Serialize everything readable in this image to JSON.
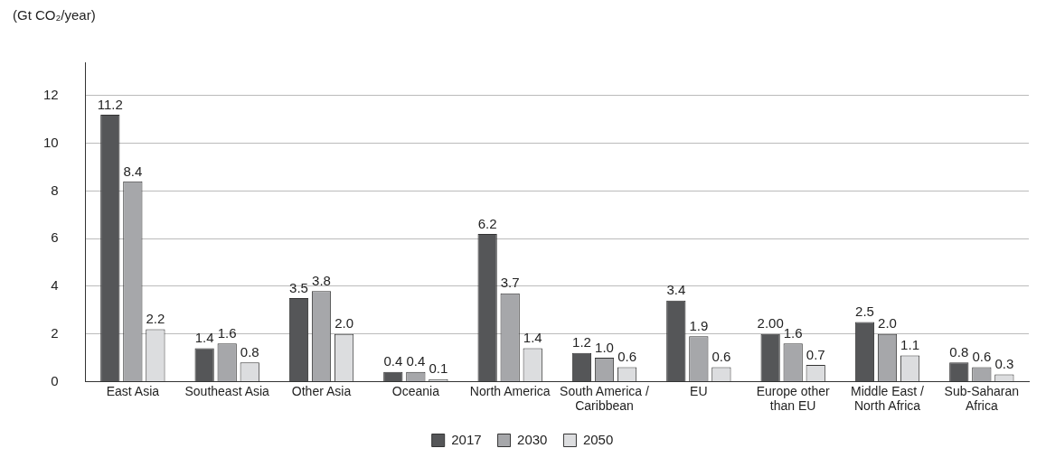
{
  "chart_data": {
    "type": "bar",
    "ylabel": "(Gt CO₂/year)",
    "categories": [
      "East Asia",
      "Southeast Asia",
      "Other Asia",
      "Oceania",
      "North America",
      "South America / Caribbean",
      "EU",
      "Europe other than EU",
      "Middle East / North Africa",
      "Sub-Saharan Africa"
    ],
    "series": [
      {
        "name": "2017",
        "color": "#555658",
        "values": [
          11.2,
          1.4,
          3.5,
          0.4,
          6.2,
          1.2,
          3.4,
          2.0,
          2.5,
          0.8
        ],
        "value_labels": [
          "11.2",
          "1.4",
          "3.5",
          "0.4",
          "6.2",
          "1.2",
          "3.4",
          "2.00",
          "2.5",
          "0.8"
        ]
      },
      {
        "name": "2030",
        "color": "#a6a7aa",
        "values": [
          8.4,
          1.6,
          3.8,
          0.4,
          3.7,
          1.0,
          1.9,
          1.6,
          2.0,
          0.6
        ],
        "value_labels": [
          "8.4",
          "1.6",
          "3.8",
          "0.4",
          "3.7",
          "1.0",
          "1.9",
          "1.6",
          "2.0",
          "0.6"
        ]
      },
      {
        "name": "2050",
        "color": "#dcdddf",
        "values": [
          2.2,
          0.8,
          2.0,
          0.1,
          1.4,
          0.6,
          0.6,
          0.7,
          1.1,
          0.3
        ],
        "value_labels": [
          "2.2",
          "0.8",
          "2.0",
          "0.1",
          "1.4",
          "0.6",
          "0.6",
          "0.7",
          "1.1",
          "0.3"
        ]
      }
    ],
    "ylim": [
      0,
      13.4
    ],
    "yticks": [
      0,
      2,
      4,
      6,
      8,
      10,
      12
    ],
    "grid": "y",
    "legend": "bottom"
  }
}
